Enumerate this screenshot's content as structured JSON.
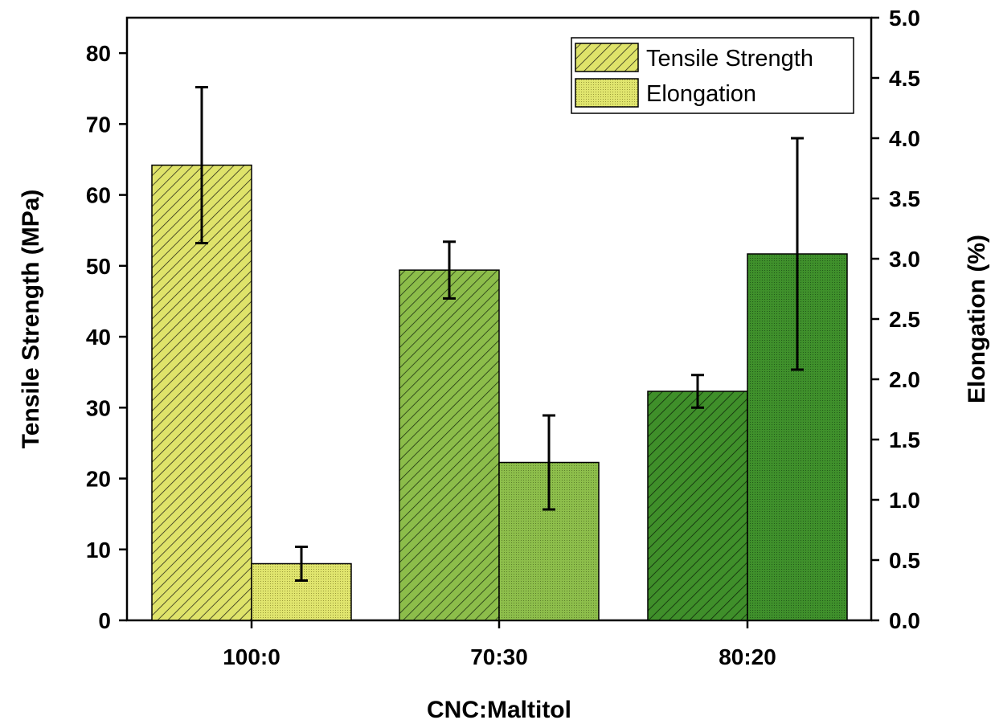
{
  "chart_data": {
    "type": "bar",
    "categories": [
      "100:0",
      "70:30",
      "80:20"
    ],
    "xlabel": "CNC:Maltitol",
    "ylabel_left": "Tensile Strength (MPa)",
    "ylabel_right": "Elongation (%)",
    "ylim_left": [
      0,
      85
    ],
    "ylim_right": [
      0,
      5.0
    ],
    "yticks_left": [
      0,
      10,
      20,
      30,
      40,
      50,
      60,
      70,
      80
    ],
    "yticks_right": [
      0.0,
      0.5,
      1.0,
      1.5,
      2.0,
      2.5,
      3.0,
      3.5,
      4.0,
      4.5,
      5.0
    ],
    "legend_position": "top-right",
    "grid": false,
    "series": [
      {
        "name": "Tensile Strength",
        "axis": "left",
        "pattern": "diagonal-hatch",
        "values": [
          64.2,
          49.4,
          32.3
        ],
        "errors": [
          11.0,
          4.0,
          2.3
        ],
        "colors": [
          "#dfe36a",
          "#8cbd4a",
          "#3f8f2a"
        ]
      },
      {
        "name": "Elongation",
        "axis": "right",
        "pattern": "fine-dots",
        "values": [
          0.47,
          1.31,
          3.04
        ],
        "errors": [
          0.14,
          0.39,
          0.96
        ],
        "colors": [
          "#dfe36a",
          "#8cbd4a",
          "#3f8f2a"
        ]
      }
    ]
  }
}
